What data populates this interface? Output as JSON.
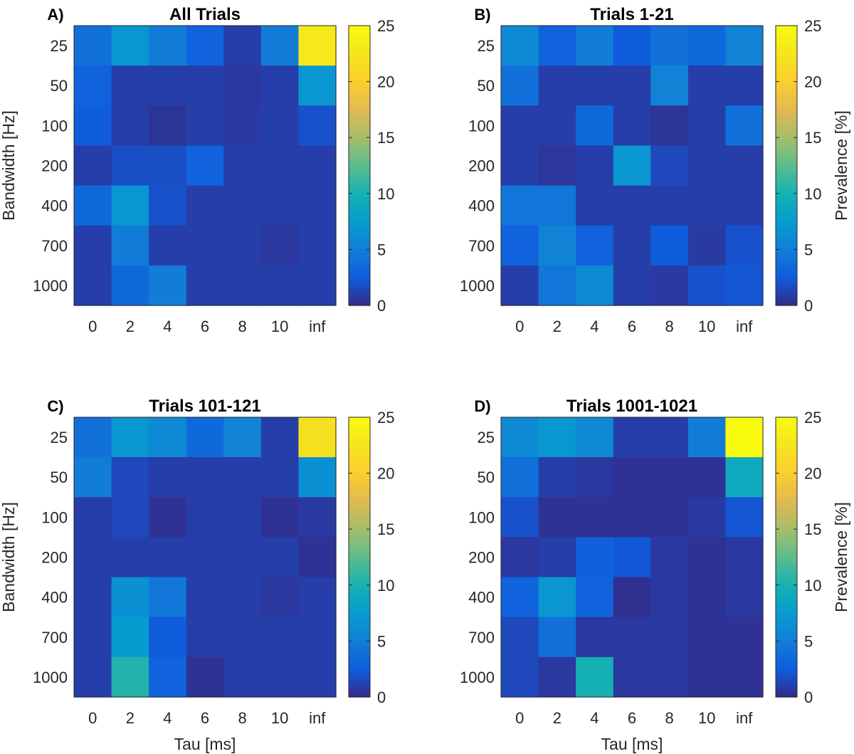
{
  "chart_data": {
    "type": "heatmap",
    "colormap": "parula",
    "x_categories": [
      "0",
      "2",
      "4",
      "6",
      "8",
      "10",
      "inf"
    ],
    "y_categories": [
      "25",
      "50",
      "100",
      "200",
      "400",
      "700",
      "1000"
    ],
    "xlabel": "Tau [ms]",
    "ylabel": "Bandwidth [Hz]",
    "colorbar": {
      "label": "Prevalence [%]",
      "range": [
        0,
        25
      ],
      "ticks": [
        "0",
        "5",
        "10",
        "15",
        "20",
        "25"
      ]
    },
    "panels": [
      {
        "label": "A)",
        "title": "All Trials",
        "values": [
          [
            4,
            7,
            5,
            3,
            1,
            5,
            23
          ],
          [
            3,
            1,
            1,
            1,
            0.7,
            1,
            7
          ],
          [
            2.5,
            1,
            0.5,
            1,
            0.8,
            1,
            2
          ],
          [
            1,
            1.8,
            1.8,
            3,
            1,
            1,
            1
          ],
          [
            3.5,
            7,
            2,
            1,
            1,
            1,
            1
          ],
          [
            1,
            5,
            1,
            1,
            1,
            0.7,
            1
          ],
          [
            1,
            3.5,
            5,
            1,
            1,
            1,
            1
          ]
        ]
      },
      {
        "label": "B)",
        "title": "Trials 1-21",
        "values": [
          [
            6,
            3,
            5,
            2.5,
            4,
            3.5,
            5.5
          ],
          [
            4,
            1,
            1,
            1,
            5.5,
            1,
            1
          ],
          [
            1,
            1,
            3.5,
            1,
            0.5,
            1,
            4
          ],
          [
            1,
            0.6,
            1,
            7,
            1.5,
            1,
            1
          ],
          [
            4.5,
            4.5,
            1,
            1,
            1,
            1,
            1
          ],
          [
            3,
            5.5,
            3,
            1,
            2.5,
            0.8,
            2
          ],
          [
            1,
            4.5,
            6,
            1,
            0.8,
            2,
            2.2
          ]
        ]
      },
      {
        "label": "C)",
        "title": "Trials 101-121",
        "values": [
          [
            4,
            7,
            6,
            3.5,
            5.5,
            1,
            22
          ],
          [
            5,
            1.5,
            1,
            1,
            1,
            1,
            6.5
          ],
          [
            1,
            1.5,
            0.4,
            1,
            1,
            0.4,
            0.8
          ],
          [
            1,
            1,
            1,
            1,
            1,
            1,
            0.4
          ],
          [
            1,
            6.5,
            4.5,
            1,
            1,
            0.7,
            1
          ],
          [
            1,
            7.5,
            2.5,
            1,
            1,
            1,
            1
          ],
          [
            1,
            10.5,
            3,
            0.4,
            1,
            1,
            1
          ]
        ]
      },
      {
        "label": "D)",
        "title": "Trials 1001-1021",
        "values": [
          [
            6,
            7,
            6,
            1,
            1,
            5,
            25
          ],
          [
            4,
            1,
            0.7,
            0.4,
            0.4,
            0.4,
            9
          ],
          [
            2,
            0.4,
            0.4,
            0.4,
            0.4,
            0.8,
            2.2
          ],
          [
            0.7,
            1,
            2.8,
            2.3,
            0.7,
            0.4,
            0.7
          ],
          [
            3,
            7,
            3,
            0.3,
            0.7,
            0.4,
            0.7
          ],
          [
            1.5,
            4,
            0.7,
            0.7,
            0.7,
            0.4,
            0.4
          ],
          [
            1.5,
            0.7,
            10,
            0.7,
            0.7,
            0.4,
            0.4
          ]
        ]
      }
    ]
  }
}
